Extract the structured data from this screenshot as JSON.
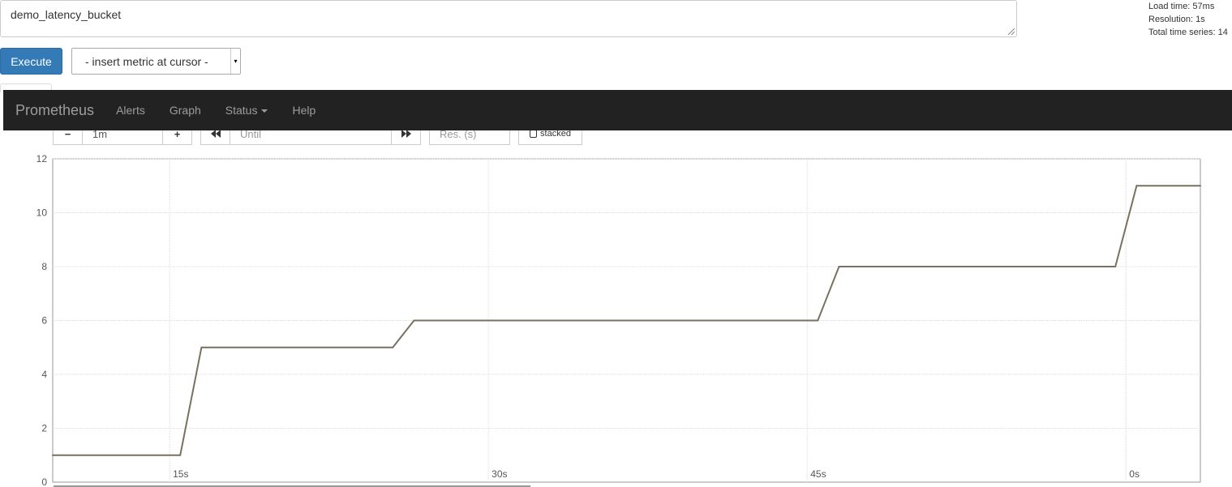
{
  "query": {
    "value": "demo_latency_bucket"
  },
  "stats": {
    "load_time": "Load time: 57ms",
    "resolution": "Resolution: 1s",
    "total_series": "Total time series: 14"
  },
  "toolbar": {
    "execute_label": "Execute",
    "metric_select_value": "- insert metric at cursor -"
  },
  "navbar": {
    "brand": "Prometheus",
    "items": [
      "Alerts",
      "Graph",
      "Status",
      "Help"
    ]
  },
  "graph_controls": {
    "range_minus": "−",
    "range_value": "1m",
    "range_plus": "+",
    "back_icon": "fast-backward-icon",
    "until_placeholder": "Until",
    "forward_icon": "fast-forward-icon",
    "resolution_placeholder": "Res. (s)",
    "stacked_label": "stacked"
  },
  "colors": {
    "series_line": "#7a705f",
    "navbar_bg": "#222222",
    "execute_bg": "#337ab7"
  },
  "chart_data": {
    "type": "line",
    "ylim": [
      0,
      12
    ],
    "yticks": [
      0,
      2,
      4,
      6,
      8,
      10,
      12
    ],
    "xlim": [
      -50.5,
      3.5
    ],
    "xticks": [
      {
        "value": -45,
        "label": "15s"
      },
      {
        "value": -30,
        "label": "30s"
      },
      {
        "value": -15,
        "label": "45s"
      },
      {
        "value": 0,
        "label": "0s"
      }
    ],
    "grid": true,
    "series": [
      {
        "color": "#7a705f",
        "points": [
          [
            -50.5,
            1
          ],
          [
            -44.5,
            1
          ],
          [
            -43.5,
            5
          ],
          [
            -34.5,
            5
          ],
          [
            -33.5,
            6
          ],
          [
            -14.5,
            6
          ],
          [
            -13.5,
            8
          ],
          [
            -0.5,
            8
          ],
          [
            0.5,
            11
          ],
          [
            3.5,
            11
          ]
        ]
      }
    ]
  }
}
